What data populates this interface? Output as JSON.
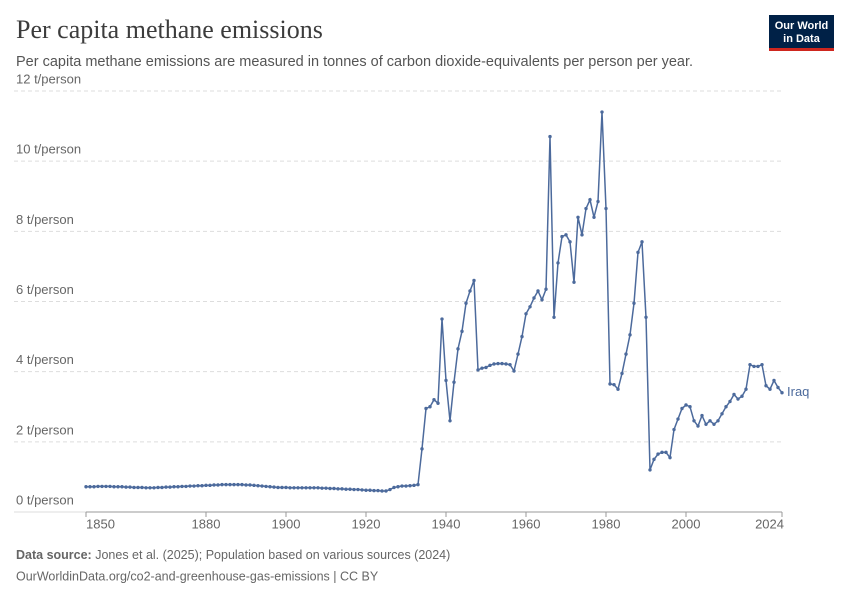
{
  "chart_data": {
    "type": "line",
    "title": "Per capita methane emissions",
    "subtitle": "Per capita methane emissions are measured in tonnes of carbon dioxide-equivalents per person per year.",
    "logo": [
      "Our World",
      "in Data"
    ],
    "source_label": "Data source:",
    "source": "Jones et al. (2025); Population based on various sources (2024)",
    "footer": "OurWorldinData.org/co2-and-greenhouse-gas-emissions | CC BY",
    "x": [
      1850,
      1851,
      1852,
      1853,
      1854,
      1855,
      1856,
      1857,
      1858,
      1859,
      1860,
      1861,
      1862,
      1863,
      1864,
      1865,
      1866,
      1867,
      1868,
      1869,
      1870,
      1871,
      1872,
      1873,
      1874,
      1875,
      1876,
      1877,
      1878,
      1879,
      1880,
      1881,
      1882,
      1883,
      1884,
      1885,
      1886,
      1887,
      1888,
      1889,
      1890,
      1891,
      1892,
      1893,
      1894,
      1895,
      1896,
      1897,
      1898,
      1899,
      1900,
      1901,
      1902,
      1903,
      1904,
      1905,
      1906,
      1907,
      1908,
      1909,
      1910,
      1911,
      1912,
      1913,
      1914,
      1915,
      1916,
      1917,
      1918,
      1919,
      1920,
      1921,
      1922,
      1923,
      1924,
      1925,
      1926,
      1927,
      1928,
      1929,
      1930,
      1931,
      1932,
      1933,
      1934,
      1935,
      1936,
      1937,
      1938,
      1939,
      1940,
      1941,
      1942,
      1943,
      1944,
      1945,
      1946,
      1947,
      1948,
      1949,
      1950,
      1951,
      1952,
      1953,
      1954,
      1955,
      1956,
      1957,
      1958,
      1959,
      1960,
      1961,
      1962,
      1963,
      1964,
      1965,
      1966,
      1967,
      1968,
      1969,
      1970,
      1971,
      1972,
      1973,
      1974,
      1975,
      1976,
      1977,
      1978,
      1979,
      1980,
      1981,
      1982,
      1983,
      1984,
      1985,
      1986,
      1987,
      1988,
      1989,
      1990,
      1991,
      1992,
      1993,
      1994,
      1995,
      1996,
      1997,
      1998,
      1999,
      2000,
      2001,
      2002,
      2003,
      2004,
      2005,
      2006,
      2007,
      2008,
      2009,
      2010,
      2011,
      2012,
      2013,
      2014,
      2015,
      2016,
      2017,
      2018,
      2019,
      2020,
      2021,
      2022,
      2023,
      2024
    ],
    "series": [
      {
        "name": "Iraq",
        "color": "#4c6a9c",
        "values": [
          0.72,
          0.72,
          0.72,
          0.73,
          0.73,
          0.73,
          0.73,
          0.72,
          0.72,
          0.72,
          0.71,
          0.71,
          0.7,
          0.7,
          0.7,
          0.69,
          0.69,
          0.69,
          0.7,
          0.7,
          0.71,
          0.71,
          0.72,
          0.72,
          0.73,
          0.73,
          0.74,
          0.74,
          0.75,
          0.75,
          0.76,
          0.76,
          0.77,
          0.77,
          0.78,
          0.78,
          0.78,
          0.78,
          0.78,
          0.78,
          0.77,
          0.77,
          0.76,
          0.75,
          0.74,
          0.73,
          0.72,
          0.71,
          0.7,
          0.7,
          0.7,
          0.69,
          0.69,
          0.69,
          0.69,
          0.69,
          0.69,
          0.69,
          0.69,
          0.68,
          0.68,
          0.67,
          0.67,
          0.66,
          0.66,
          0.65,
          0.65,
          0.64,
          0.64,
          0.63,
          0.62,
          0.62,
          0.61,
          0.61,
          0.6,
          0.6,
          0.64,
          0.7,
          0.72,
          0.74,
          0.74,
          0.75,
          0.76,
          0.78,
          1.8,
          2.95,
          3.0,
          3.2,
          3.1,
          5.5,
          3.75,
          2.6,
          3.7,
          4.65,
          5.15,
          5.95,
          6.3,
          6.6,
          4.05,
          4.1,
          4.12,
          4.18,
          4.22,
          4.23,
          4.23,
          4.22,
          4.2,
          4.02,
          4.5,
          5.0,
          5.65,
          5.85,
          6.1,
          6.3,
          6.05,
          6.35,
          10.7,
          5.55,
          7.1,
          7.85,
          7.9,
          7.7,
          6.55,
          8.4,
          7.9,
          8.65,
          8.9,
          8.4,
          8.85,
          11.4,
          8.65,
          3.65,
          3.63,
          3.5,
          3.95,
          4.5,
          5.05,
          5.95,
          7.4,
          7.7,
          5.55,
          1.2,
          1.5,
          1.65,
          1.7,
          1.7,
          1.55,
          2.35,
          2.65,
          2.95,
          3.05,
          3.0,
          2.6,
          2.45,
          2.75,
          2.5,
          2.6,
          2.5,
          2.6,
          2.8,
          3.0,
          3.15,
          3.35,
          3.22,
          3.3,
          3.5,
          4.2,
          4.15,
          4.15,
          4.2,
          3.6,
          3.5,
          3.75,
          3.55,
          3.4
        ]
      }
    ],
    "xlim": [
      1850,
      2024
    ],
    "xticks": [
      1850,
      1880,
      1900,
      1920,
      1940,
      1960,
      1980,
      2000,
      2024
    ],
    "ylim": [
      0,
      12
    ],
    "yticks": [
      {
        "value": 0,
        "label": "0 t/person"
      },
      {
        "value": 2,
        "label": "2 t/person"
      },
      {
        "value": 4,
        "label": "4 t/person"
      },
      {
        "value": 6,
        "label": "6 t/person"
      },
      {
        "value": 8,
        "label": "8 t/person"
      },
      {
        "value": 10,
        "label": "10 t/person"
      },
      {
        "value": 12,
        "label": "12 t/person"
      }
    ],
    "grid": true
  }
}
